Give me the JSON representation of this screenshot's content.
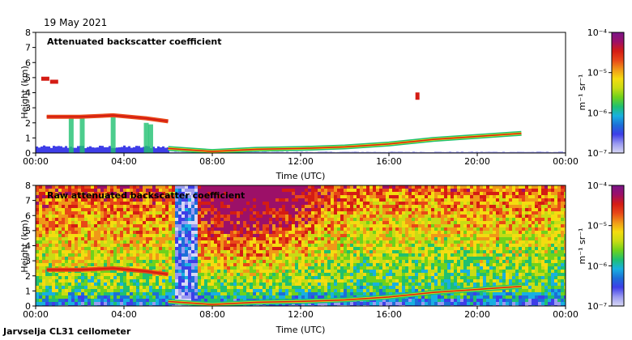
{
  "date": "19 May 2021",
  "footer": "Jarvselja CL31 ceilometer",
  "colors": {
    "colormap": [
      "#d8d8f4",
      "#9a9af0",
      "#3e3ee8",
      "#1c6fd8",
      "#18b0e0",
      "#1fc070",
      "#6fd21c",
      "#c8dc14",
      "#f4dc10",
      "#f09818",
      "#e84818",
      "#d41c14",
      "#9c1068",
      "#7a1488"
    ]
  },
  "chart_data": [
    {
      "type": "heatmap",
      "title": "Attenuated backscatter coefficient",
      "xlabel": "Time (UTC)",
      "ylabel": "Height (km)",
      "x_ticks": [
        "00:00",
        "04:00",
        "08:00",
        "12:00",
        "16:00",
        "20:00",
        "00:00"
      ],
      "x_range_hours": [
        0,
        24
      ],
      "y_ticks": [
        "0",
        "1",
        "2",
        "3",
        "4",
        "5",
        "6",
        "7",
        "8"
      ],
      "ylim": [
        0,
        8
      ],
      "colorbar": {
        "unit": "m⁻¹ sr⁻¹",
        "ticks": [
          "10⁻⁴",
          "10⁻⁵",
          "10⁻⁶",
          "10⁻⁷"
        ],
        "range_log10": [
          -7,
          -4
        ]
      },
      "features": {
        "cloud_layer": [
          [
            0.5,
            2.4
          ],
          [
            2.0,
            2.4
          ],
          [
            3.5,
            2.5
          ],
          [
            5.0,
            2.3
          ],
          [
            6.0,
            2.1
          ]
        ],
        "upper_cloud": [
          [
            0.4,
            4.9
          ],
          [
            0.8,
            4.7
          ]
        ],
        "high_patch": [
          [
            17.2,
            3.8
          ]
        ],
        "boundary_layer_top": [
          [
            6.0,
            0.3
          ],
          [
            8.0,
            0.1
          ],
          [
            10.0,
            0.25
          ],
          [
            12.0,
            0.3
          ],
          [
            14.0,
            0.4
          ],
          [
            16.0,
            0.6
          ],
          [
            18.0,
            0.9
          ],
          [
            20.0,
            1.1
          ],
          [
            22.0,
            1.3
          ]
        ]
      }
    },
    {
      "type": "heatmap",
      "title": "Raw attenuated backscatter coefficient",
      "xlabel": "Time (UTC)",
      "ylabel": "Height (km)",
      "x_ticks": [
        "00:00",
        "04:00",
        "08:00",
        "12:00",
        "16:00",
        "20:00",
        "00:00"
      ],
      "x_range_hours": [
        0,
        24
      ],
      "y_ticks": [
        "0",
        "1",
        "2",
        "3",
        "4",
        "5",
        "6",
        "7",
        "8"
      ],
      "ylim": [
        0,
        8
      ],
      "colorbar": {
        "unit": "m⁻¹ sr⁻¹",
        "ticks": [
          "10⁻⁴",
          "10⁻⁵",
          "10⁻⁶",
          "10⁻⁷"
        ],
        "range_log10": [
          -7,
          -4
        ]
      },
      "features": {
        "cloud_layer": [
          [
            0.5,
            2.4
          ],
          [
            2.0,
            2.4
          ],
          [
            3.5,
            2.5
          ],
          [
            5.0,
            2.3
          ],
          [
            6.0,
            2.1
          ]
        ],
        "boundary_layer_top": [
          [
            6.0,
            0.3
          ],
          [
            8.0,
            0.1
          ],
          [
            10.0,
            0.25
          ],
          [
            12.0,
            0.3
          ],
          [
            14.0,
            0.4
          ],
          [
            16.0,
            0.6
          ],
          [
            18.0,
            0.9
          ],
          [
            20.0,
            1.1
          ],
          [
            22.0,
            1.3
          ]
        ]
      }
    }
  ]
}
